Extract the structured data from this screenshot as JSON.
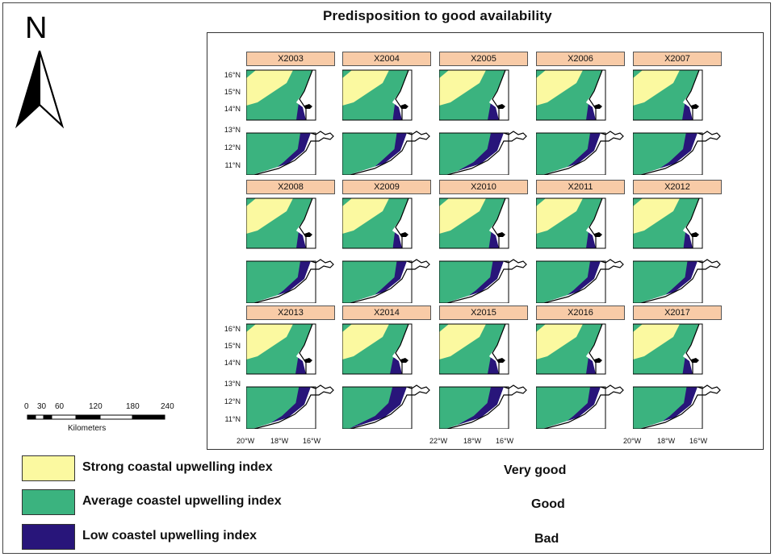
{
  "figure": {
    "title": "Predisposition to good availability",
    "north_letter": "N",
    "colors": {
      "strong": "#fbf9a0",
      "average": "#3bb37f",
      "low": "#28157a",
      "strip": "#f8cba7",
      "land": "#ffffff"
    },
    "panels": [
      "X2003",
      "X2004",
      "X2005",
      "X2006",
      "X2007",
      "X2008",
      "X2009",
      "X2010",
      "X2011",
      "X2012",
      "X2013",
      "X2014",
      "X2015",
      "X2016",
      "X2017"
    ],
    "low_width_per_panel": [
      0.1,
      0.08,
      0.2,
      0.1,
      0.14,
      0.1,
      0.08,
      0.12,
      0.1,
      0.08,
      0.16,
      0.26,
      0.2,
      0.1,
      0.12
    ],
    "yticks": [
      "16°N",
      "15°N",
      "14°N",
      "13°N",
      "12°N",
      "11°N"
    ],
    "xticks": [
      [
        "20°W",
        "18°W",
        "16°W"
      ],
      [
        "22°W",
        "18°W",
        "16°W"
      ],
      [
        "20°W",
        "18°W",
        "16°W"
      ]
    ]
  },
  "scale": {
    "ticks": [
      "0",
      "30",
      "60",
      "120",
      "180",
      "240"
    ],
    "unit": "Kilometers"
  },
  "legend": [
    {
      "label": "Strong coastal upwelling index",
      "quality": "Very good",
      "color": "#fbf9a0"
    },
    {
      "label": "Average coastel upwelling index",
      "quality": "Good",
      "color": "#3bb37f"
    },
    {
      "label": "Low coastel upwelling index",
      "quality": "Bad",
      "color": "#28157a"
    }
  ]
}
